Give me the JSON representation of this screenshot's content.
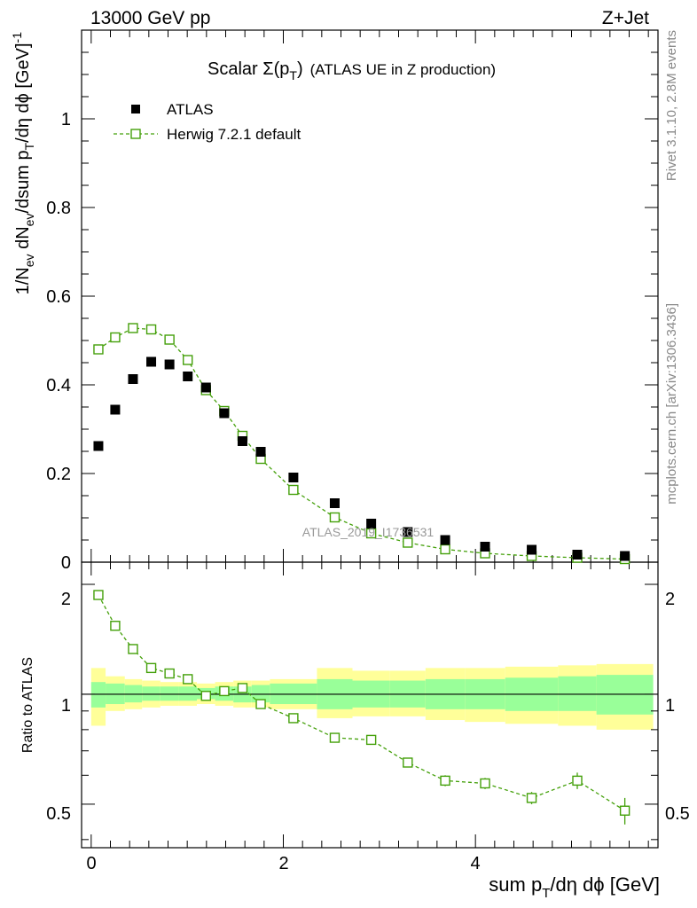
{
  "header": {
    "energy_label": "13000 GeV pp",
    "process_label": "Z+Jet"
  },
  "side_text": {
    "rivet": "Rivet 3.1.10,  2.8M events",
    "mcplots": "mcplots.cern.ch [arXiv:1306.3436]"
  },
  "watermark": "ATLAS_2019_I1736531",
  "chart_data": [
    {
      "panel": "main",
      "type": "scatter",
      "title": {
        "prefix": "Scalar Σ(p",
        "sub": "T",
        "suffix": ")",
        "rest": "(ATLAS UE in Z production)"
      },
      "xlabel": "sum p_T/dη dϕ [GeV]",
      "xlabel_parts": {
        "a": "sum p",
        "sub": "T",
        "b": "/dη dϕ [GeV]"
      },
      "ylabel": "1/N_ev dN_ev/dsum p_T/dη dϕ [GeV]^-1",
      "ylabel_parts": {
        "a": "1/N",
        "sub1": "ev",
        "b": " dN",
        "sub2": "ev",
        "c": "/dsum p",
        "sub3": "T",
        "d": "/dη dϕ  [GeV]",
        "sup": "-1"
      },
      "xlim": [
        -0.1,
        5.9
      ],
      "ylim": [
        0,
        1.2
      ],
      "yticks": [
        "0",
        "0.2",
        "0.4",
        "0.6",
        "0.8",
        "1"
      ],
      "xticks": [
        "0",
        "2",
        "4"
      ],
      "legend": {
        "position": "top-left"
      },
      "series": [
        {
          "name": "ATLAS",
          "marker": "filled-square",
          "color": "#000000",
          "x": [
            0.075,
            0.25,
            0.435,
            0.625,
            0.815,
            1.005,
            1.195,
            1.385,
            1.575,
            1.765,
            2.105,
            2.535,
            2.915,
            3.295,
            3.685,
            4.1,
            4.585,
            5.06,
            5.555
          ],
          "y": [
            0.262,
            0.344,
            0.413,
            0.452,
            0.446,
            0.419,
            0.394,
            0.336,
            0.273,
            0.249,
            0.191,
            0.133,
            0.087,
            0.068,
            0.05,
            0.035,
            0.028,
            0.017,
            0.014
          ]
        },
        {
          "name": "Herwig 7.2.1 default",
          "marker": "open-square",
          "line": "dashed",
          "color": "#44a00a",
          "x": [
            0.075,
            0.25,
            0.435,
            0.625,
            0.815,
            1.005,
            1.195,
            1.385,
            1.575,
            1.765,
            2.105,
            2.535,
            2.915,
            3.295,
            3.685,
            4.1,
            4.585,
            5.06,
            5.555
          ],
          "y": [
            0.48,
            0.507,
            0.528,
            0.525,
            0.502,
            0.456,
            0.388,
            0.341,
            0.285,
            0.233,
            0.163,
            0.101,
            0.065,
            0.044,
            0.029,
            0.02,
            0.014,
            0.01,
            0.007
          ]
        }
      ]
    },
    {
      "panel": "ratio",
      "type": "line",
      "ylabel": "Ratio to ATLAS",
      "xlim": [
        -0.1,
        5.9
      ],
      "ylim": [
        0.38,
        2.3
      ],
      "yticks": [
        "0.5",
        "1",
        "2"
      ],
      "bands": {
        "inner_color": "#99ff99",
        "outer_color": "#ffff99",
        "edges": [
          0.0,
          0.15,
          0.35,
          0.53,
          0.72,
          0.91,
          1.1,
          1.29,
          1.48,
          1.67,
          1.86,
          2.35,
          2.72,
          3.11,
          3.48,
          3.89,
          4.31,
          4.86,
          5.26,
          5.85
        ],
        "inner_lo": [
          0.92,
          0.94,
          0.95,
          0.96,
          0.96,
          0.96,
          0.97,
          0.96,
          0.95,
          0.95,
          0.94,
          0.91,
          0.92,
          0.92,
          0.91,
          0.91,
          0.9,
          0.9,
          0.88
        ],
        "inner_hi": [
          1.08,
          1.07,
          1.06,
          1.05,
          1.05,
          1.05,
          1.04,
          1.05,
          1.05,
          1.06,
          1.07,
          1.1,
          1.09,
          1.09,
          1.1,
          1.1,
          1.11,
          1.12,
          1.13
        ],
        "outer_lo": [
          0.82,
          0.9,
          0.91,
          0.92,
          0.93,
          0.93,
          0.94,
          0.93,
          0.92,
          0.92,
          0.91,
          0.86,
          0.87,
          0.87,
          0.85,
          0.84,
          0.83,
          0.82,
          0.8
        ],
        "outer_hi": [
          1.18,
          1.12,
          1.1,
          1.09,
          1.08,
          1.08,
          1.07,
          1.08,
          1.09,
          1.09,
          1.1,
          1.18,
          1.16,
          1.16,
          1.18,
          1.18,
          1.19,
          1.2,
          1.21
        ]
      },
      "series": [
        {
          "name": "Herwig 7.2.1 default / ATLAS",
          "marker": "open-square",
          "line": "dashed",
          "color": "#44a00a",
          "x": [
            0.075,
            0.25,
            0.435,
            0.625,
            0.815,
            1.005,
            1.195,
            1.385,
            1.575,
            1.765,
            2.105,
            2.535,
            2.915,
            3.295,
            3.685,
            4.1,
            4.585,
            5.06,
            5.555
          ],
          "y": [
            1.87,
            1.54,
            1.33,
            1.18,
            1.14,
            1.1,
            0.99,
            1.02,
            1.04,
            0.94,
            0.86,
            0.76,
            0.75,
            0.65,
            0.58,
            0.57,
            0.52,
            0.58,
            0.48
          ],
          "err": [
            0.01,
            0.01,
            0.01,
            0.01,
            0.01,
            0.01,
            0.01,
            0.01,
            0.01,
            0.01,
            0.01,
            0.01,
            0.01,
            0.01,
            0.02,
            0.02,
            0.02,
            0.03,
            0.04
          ]
        }
      ]
    }
  ]
}
